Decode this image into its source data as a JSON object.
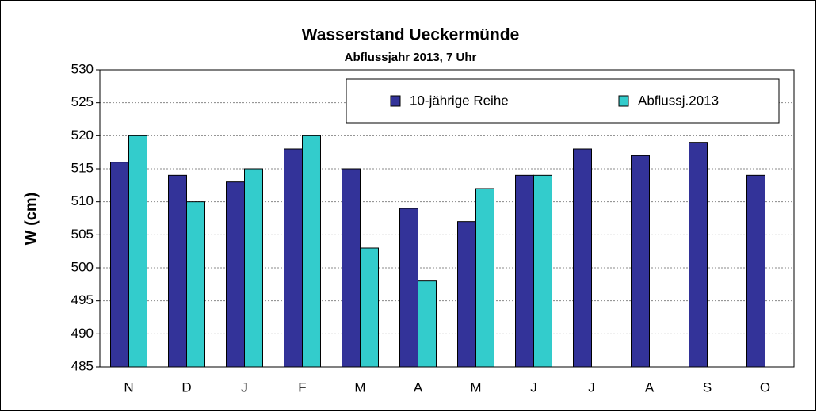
{
  "chart_data": {
    "type": "bar",
    "title": "Wasserstand Ueckermünde",
    "subtitle": "Abflussjahr 2013, 7 Uhr",
    "y_label": "W (cm)",
    "categories": [
      "N",
      "D",
      "J",
      "F",
      "M",
      "A",
      "M",
      "J",
      "J",
      "A",
      "S",
      "O"
    ],
    "series": [
      {
        "name": "10-jährige Reihe",
        "color": "#333399",
        "values": [
          516,
          514,
          513,
          518,
          515,
          509,
          507,
          514,
          518,
          517,
          519,
          514
        ]
      },
      {
        "name": "Abflussj.2013",
        "color": "#33cccc",
        "values": [
          520,
          510,
          515,
          520,
          503,
          498,
          512,
          514,
          null,
          null,
          null,
          null
        ]
      }
    ],
    "ylim": [
      485,
      530
    ],
    "yticks": [
      485,
      490,
      495,
      500,
      505,
      510,
      515,
      520,
      525,
      530
    ],
    "grid": true
  }
}
